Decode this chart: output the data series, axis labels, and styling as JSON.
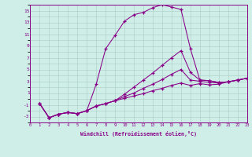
{
  "xlabel": "Windchill (Refroidissement éolien,°C)",
  "bg_color": "#d0eee8",
  "line_color": "#880088",
  "grid_color": "#a8ccc4",
  "xlim": [
    0,
    23
  ],
  "ylim": [
    -4,
    16
  ],
  "xticks": [
    0,
    1,
    2,
    3,
    4,
    5,
    6,
    7,
    8,
    9,
    10,
    11,
    12,
    13,
    14,
    15,
    16,
    17,
    18,
    19,
    20,
    21,
    22,
    23
  ],
  "yticks": [
    -3,
    -1,
    1,
    3,
    5,
    7,
    9,
    11,
    13,
    15
  ],
  "lines": [
    {
      "x": [
        1,
        2,
        3,
        4,
        5,
        6,
        7,
        8,
        9,
        10,
        11,
        12,
        13,
        14,
        15,
        16,
        17,
        18,
        19,
        20,
        21,
        22,
        23
      ],
      "y": [
        -0.8,
        -3.2,
        -2.6,
        -2.3,
        -2.5,
        -2.0,
        2.5,
        8.5,
        10.8,
        13.2,
        14.3,
        14.7,
        15.5,
        16.0,
        15.6,
        15.2,
        8.5,
        3.2,
        3.1,
        2.8,
        2.9,
        3.2,
        3.5
      ]
    },
    {
      "x": [
        1,
        2,
        3,
        4,
        5,
        6,
        7,
        8,
        9,
        10,
        11,
        12,
        13,
        14,
        15,
        16,
        17,
        18,
        19,
        20,
        21,
        22,
        23
      ],
      "y": [
        -0.8,
        -3.2,
        -2.6,
        -2.3,
        -2.5,
        -2.0,
        -1.2,
        -0.8,
        -0.3,
        0.8,
        2.0,
        3.2,
        4.4,
        5.7,
        7.0,
        8.2,
        4.5,
        3.2,
        3.1,
        2.8,
        2.9,
        3.2,
        3.5
      ]
    },
    {
      "x": [
        1,
        2,
        3,
        4,
        5,
        6,
        7,
        8,
        9,
        10,
        11,
        12,
        13,
        14,
        15,
        16,
        17,
        18,
        19,
        20,
        21,
        22,
        23
      ],
      "y": [
        -0.8,
        -3.2,
        -2.6,
        -2.3,
        -2.5,
        -2.0,
        -1.2,
        -0.8,
        -0.3,
        0.4,
        1.0,
        1.8,
        2.5,
        3.3,
        4.2,
        5.0,
        3.2,
        3.0,
        2.8,
        2.7,
        2.9,
        3.2,
        3.5
      ]
    },
    {
      "x": [
        1,
        2,
        3,
        4,
        5,
        6,
        7,
        8,
        9,
        10,
        11,
        12,
        13,
        14,
        15,
        16,
        17,
        18,
        19,
        20,
        21,
        22,
        23
      ],
      "y": [
        -0.8,
        -3.2,
        -2.6,
        -2.3,
        -2.5,
        -2.0,
        -1.2,
        -0.8,
        -0.3,
        0.1,
        0.5,
        0.9,
        1.4,
        1.8,
        2.3,
        2.7,
        2.3,
        2.6,
        2.4,
        2.5,
        2.9,
        3.2,
        3.5
      ]
    }
  ]
}
